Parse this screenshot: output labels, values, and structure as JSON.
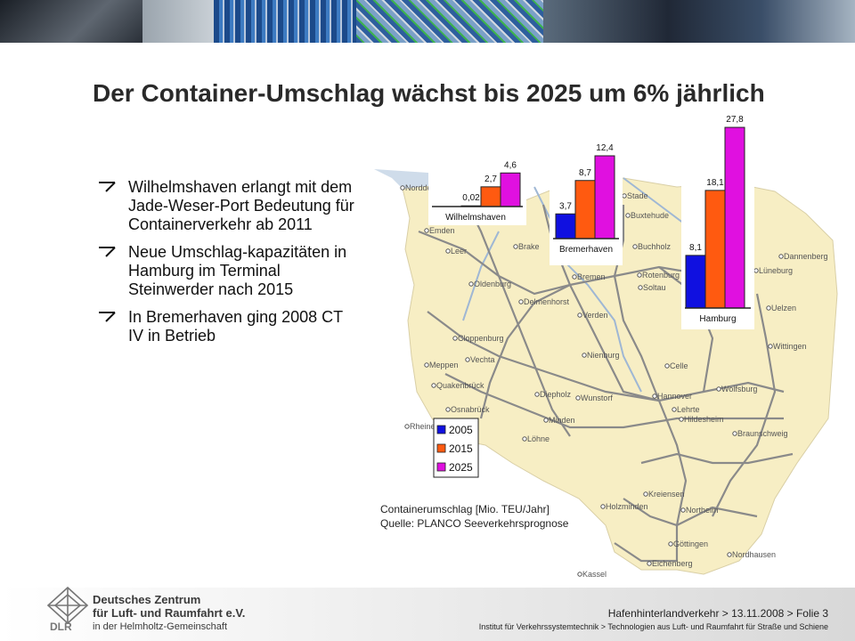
{
  "title": "Der Container-Umschlag wächst bis 2025 um 6% jährlich",
  "bullets": [
    "Wilhelmshaven erlangt mit dem Jade-Weser-Port Bedeutung für Containerverkehr ab 2011",
    "Neue Umschlag-kapazitäten in Hamburg im Terminal Steinwerder nach 2015",
    "In Bremerhaven ging 2008 CT IV in Betrieb"
  ],
  "caption": {
    "line1": "Containerumschlag [Mio. TEU/Jahr]",
    "line2": "Quelle: PLANCO Seeverkehrsprognose"
  },
  "map_labels": [
    "Norddeich",
    "Wilhelmshaven",
    "Emden",
    "Leer",
    "Brake",
    "Oldenburg",
    "Delmenhorst",
    "Bremen",
    "Cloppenburg",
    "Meppen",
    "Vechta",
    "Quakenbrück",
    "Diepholz",
    "Verden",
    "Nienburg",
    "Osnabrück",
    "Wunstorf",
    "Minden",
    "Löhne",
    "Rheine",
    "Stade",
    "Buxtehude",
    "Buchholz",
    "Rotenburg",
    "Soltau",
    "Celle",
    "Hannover",
    "Lehrte",
    "Wolfsburg",
    "Braunschweig",
    "Hildesheim",
    "Kreiensen",
    "Holzminden",
    "Northeim",
    "Göttingen",
    "Nordhausen",
    "Kassel",
    "Eichenberg",
    "Uelzen",
    "Wittingen",
    "Lüneburg",
    "Dannenberg"
  ],
  "chart_data": [
    {
      "type": "bar",
      "name": "Wilhelmshaven",
      "categories": [
        "2005",
        "2015",
        "2025"
      ],
      "values": [
        0.02,
        2.7,
        4.6
      ],
      "value_labels": [
        "0,02",
        "2,7",
        "4,6"
      ]
    },
    {
      "type": "bar",
      "name": "Bremerhaven",
      "categories": [
        "2005",
        "2015",
        "2025"
      ],
      "values": [
        3.7,
        8.7,
        12.4
      ],
      "value_labels": [
        "3,7",
        "8,7",
        "12,4"
      ]
    },
    {
      "type": "bar",
      "name": "Hamburg",
      "categories": [
        "2005",
        "2015",
        "2025"
      ],
      "values": [
        8.1,
        18.1,
        27.8
      ],
      "value_labels": [
        "8,1",
        "18,1",
        "27,8"
      ]
    }
  ],
  "legend": [
    {
      "label": "2005",
      "color": "#1010e0"
    },
    {
      "label": "2015",
      "color": "#ff5a10"
    },
    {
      "label": "2025",
      "color": "#e010e0"
    }
  ],
  "logo": {
    "line1": "Deutsches Zentrum",
    "line2": "für Luft- und Raumfahrt e.V.",
    "line3": "in der Helmholtz-Gemeinschaft",
    "mark": "DLR"
  },
  "footer": {
    "line1": "Hafenhinterlandverkehr > 13.11.2008 > Folie 3",
    "line2": "Institut für Verkehrssystemtechnik > Technologien aus Luft- und Raumfahrt für Straße und Schiene"
  }
}
